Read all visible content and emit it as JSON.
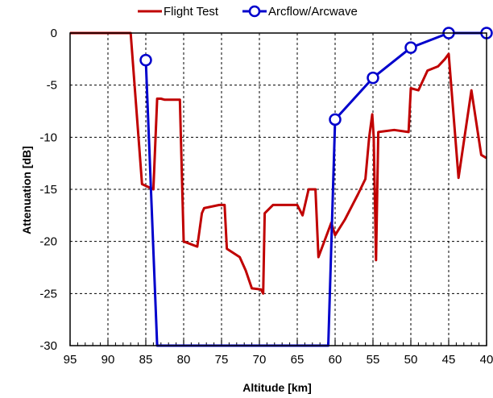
{
  "chart_data": {
    "type": "line",
    "xlabel": "Altitude [km]",
    "ylabel": "Attenuation [dB]",
    "xlim": [
      95,
      40
    ],
    "ylim": [
      -30,
      0
    ],
    "x_reversed": true,
    "x_ticks": [
      95,
      90,
      85,
      80,
      75,
      70,
      65,
      60,
      55,
      50,
      45,
      40
    ],
    "y_ticks": [
      0,
      -5,
      -10,
      -15,
      -20,
      -25,
      -30
    ],
    "x_tick_labels": [
      "95",
      "90",
      "85",
      "80",
      "75",
      "70",
      "65",
      "60",
      "55",
      "50",
      "45",
      "40"
    ],
    "y_tick_labels": [
      "0",
      "-5",
      "-10",
      "-15",
      "-20",
      "-25",
      "-30"
    ],
    "grid": true,
    "legend_position": "top",
    "series": [
      {
        "name": "Flight Test",
        "color": "#c00000",
        "marker": "none",
        "points": [
          [
            95,
            0
          ],
          [
            87,
            0
          ],
          [
            85.5,
            -14.5
          ],
          [
            84,
            -15
          ],
          [
            83.5,
            -6.3
          ],
          [
            83,
            -6.3
          ],
          [
            82.5,
            -6.4
          ],
          [
            80.5,
            -6.4
          ],
          [
            80,
            -20
          ],
          [
            78.2,
            -20.5
          ],
          [
            77.6,
            -17.3
          ],
          [
            77.3,
            -16.8
          ],
          [
            75.3,
            -16.5
          ],
          [
            74.6,
            -16.5
          ],
          [
            74.3,
            -20.7
          ],
          [
            72.6,
            -21.5
          ],
          [
            71.8,
            -22.8
          ],
          [
            71,
            -24.5
          ],
          [
            69.8,
            -24.6
          ],
          [
            69.5,
            -25
          ],
          [
            69.3,
            -17.3
          ],
          [
            68.2,
            -16.5
          ],
          [
            65,
            -16.5
          ],
          [
            64.3,
            -17.5
          ],
          [
            63.5,
            -15
          ],
          [
            63,
            -15
          ],
          [
            62.6,
            -15
          ],
          [
            62.2,
            -21.5
          ],
          [
            60.5,
            -18.2
          ],
          [
            60,
            -19.4
          ],
          [
            58.7,
            -17.9
          ],
          [
            57,
            -15.5
          ],
          [
            56,
            -14
          ],
          [
            55.5,
            -10
          ],
          [
            55.1,
            -7.8
          ],
          [
            54.9,
            -10
          ],
          [
            54.6,
            -21.8
          ],
          [
            54.3,
            -9.5
          ],
          [
            52.2,
            -9.3
          ],
          [
            50.3,
            -9.5
          ],
          [
            50,
            -5.3
          ],
          [
            49.5,
            -5.4
          ],
          [
            49,
            -5.5
          ],
          [
            47.8,
            -3.6
          ],
          [
            46.4,
            -3.2
          ],
          [
            45.5,
            -2.5
          ],
          [
            45,
            -2
          ],
          [
            43.7,
            -13.9
          ],
          [
            42,
            -5.5
          ],
          [
            40.7,
            -11.7
          ],
          [
            40,
            -12
          ]
        ]
      },
      {
        "name": "Arcflow/Arcwave",
        "color": "#0000cc",
        "marker": "circle",
        "points": [
          [
            85,
            -2.6
          ],
          [
            83.5,
            -30
          ],
          [
            60.9,
            -30
          ],
          [
            60,
            -8.3
          ],
          [
            55,
            -4.3
          ],
          [
            50,
            -1.4
          ],
          [
            45,
            0
          ],
          [
            40,
            0
          ]
        ],
        "marker_points": [
          [
            85,
            -2.6
          ],
          [
            60,
            -8.3
          ],
          [
            55,
            -4.3
          ],
          [
            50,
            -1.4
          ],
          [
            45,
            0
          ],
          [
            40,
            0
          ]
        ]
      }
    ]
  }
}
